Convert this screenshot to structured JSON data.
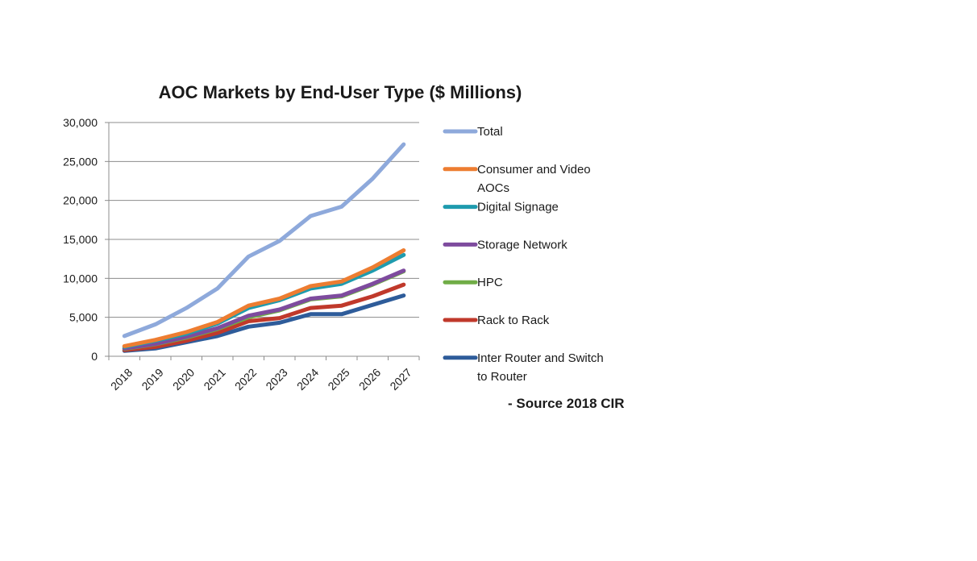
{
  "chart_data": {
    "type": "line",
    "title": "AOC Markets by  End-User Type ($ Millions)",
    "xlabel": "",
    "ylabel": "",
    "x": [
      "2018",
      "2019",
      "2020",
      "2021",
      "2022",
      "2023",
      "2024",
      "2025",
      "2026",
      "2027"
    ],
    "ylim": [
      0,
      30000
    ],
    "yticks": [
      0,
      5000,
      10000,
      15000,
      20000,
      25000,
      30000
    ],
    "ytick_labels": [
      "0",
      "5,000",
      "10,000",
      "15,000",
      "20,000",
      "25,000",
      "30,000"
    ],
    "grid": true,
    "legend_position": "right",
    "series": [
      {
        "name": "Total",
        "color": "#8EA9DB",
        "values": [
          2600,
          4100,
          6200,
          8700,
          12800,
          14800,
          18000,
          19200,
          22800,
          27200
        ],
        "legend_lines": [
          "Total"
        ]
      },
      {
        "name": "Consumer and Video AOCs",
        "color": "#ED7D31",
        "values": [
          1300,
          2100,
          3100,
          4400,
          6500,
          7400,
          9000,
          9600,
          11400,
          13600
        ],
        "legend_lines": [
          "Consumer and Video",
          "AOCs"
        ]
      },
      {
        "name": "Digital Signage",
        "color": "#1F9BAE",
        "values": [
          1200,
          2000,
          2900,
          4200,
          6200,
          7200,
          8700,
          9300,
          11000,
          13000
        ],
        "legend_lines": [
          "Digital Signage"
        ]
      },
      {
        "name": "Storage Network",
        "color": "#7E4B9E",
        "values": [
          1000,
          1600,
          2500,
          3600,
          5200,
          6000,
          7400,
          7800,
          9300,
          11000
        ],
        "legend_lines": [
          "Storage Network"
        ]
      },
      {
        "name": "HPC",
        "color": "#70AD47",
        "values": [
          950,
          1550,
          2400,
          3500,
          5000,
          5900,
          7300,
          7700,
          9200,
          10900
        ],
        "legend_lines": [
          "HPC"
        ]
      },
      {
        "name": "Rack to Rack",
        "color": "#C0392B",
        "values": [
          800,
          1200,
          2000,
          3000,
          4500,
          4900,
          6200,
          6500,
          7700,
          9200
        ],
        "legend_lines": [
          "Rack to Rack"
        ]
      },
      {
        "name": "Inter Router and Switch to Router",
        "color": "#2E5C9A",
        "values": [
          700,
          1000,
          1800,
          2600,
          3800,
          4300,
          5400,
          5400,
          6600,
          7800
        ],
        "legend_lines": [
          "Inter Router and Switch",
          "to Router"
        ]
      }
    ],
    "annotation": "- Source 2018  CIR"
  }
}
